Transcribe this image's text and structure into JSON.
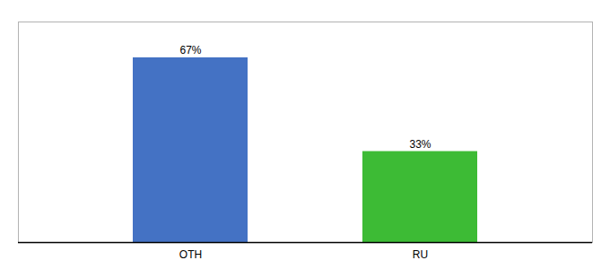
{
  "chart_data": {
    "type": "bar",
    "categories": [
      "OTH",
      "RU"
    ],
    "values": [
      67,
      33
    ],
    "value_labels": [
      "67%",
      "33%"
    ],
    "colors": [
      "#4472c4",
      "#3dbb35"
    ],
    "ylim": [
      0,
      80
    ],
    "data_labels": true,
    "tick_labels": "x"
  }
}
